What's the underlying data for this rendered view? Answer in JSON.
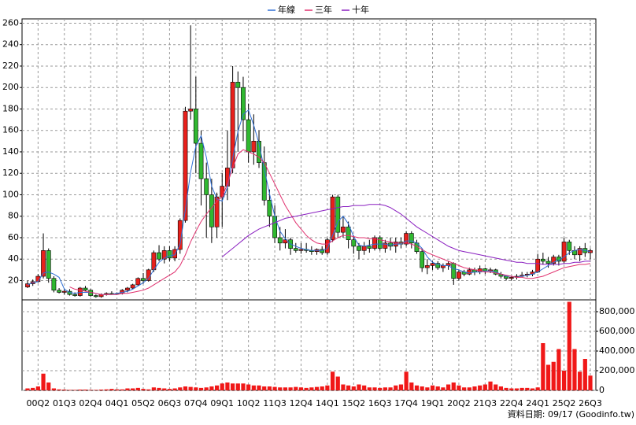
{
  "chart_data": [
    {
      "type": "candlestick",
      "legend": "top",
      "note": "資料日期: 09/17 (Goodinfo.tw)",
      "up_color": "#e8201c",
      "down_color": "#30b830",
      "categories": [
        null,
        null,
        "00Q2",
        null,
        null,
        null,
        null,
        "01Q3",
        null,
        null,
        null,
        null,
        "02Q4",
        null,
        null,
        null,
        null,
        "04Q1",
        null,
        null,
        null,
        null,
        "05Q2",
        null,
        null,
        null,
        null,
        "06Q3",
        null,
        null,
        null,
        null,
        "07Q4",
        null,
        null,
        null,
        null,
        "09Q1",
        null,
        null,
        null,
        null,
        "10Q2",
        null,
        null,
        null,
        null,
        "11Q3",
        null,
        null,
        null,
        null,
        "12Q4",
        null,
        null,
        null,
        null,
        "14Q1",
        null,
        null,
        null,
        null,
        "15Q2",
        null,
        null,
        null,
        null,
        "16Q3",
        null,
        null,
        null,
        null,
        "17Q4",
        null,
        null,
        null,
        null,
        "19Q1",
        null,
        null,
        null,
        null,
        "20Q2",
        null,
        null,
        null,
        null,
        "21Q3",
        null,
        null,
        null,
        null,
        "22Q4",
        null,
        null,
        null,
        null,
        "24Q1",
        null,
        null,
        null,
        null,
        "25Q2",
        null,
        null,
        null,
        null,
        "26Q3"
      ],
      "open": [
        14,
        17,
        19,
        24,
        48,
        22,
        11,
        9,
        10,
        7,
        6,
        13,
        11,
        6,
        5,
        7,
        8,
        8,
        8,
        11,
        13,
        16,
        22,
        20,
        30,
        46,
        40,
        48,
        41,
        49,
        76,
        178,
        180,
        148,
        115,
        100,
        70,
        98,
        108,
        125,
        205,
        200,
        170,
        140,
        150,
        130,
        95,
        80,
        60,
        55,
        58,
        50,
        48,
        49,
        48,
        47,
        49,
        46,
        58,
        98,
        65,
        70,
        58,
        52,
        48,
        52,
        50,
        60,
        50,
        55,
        52,
        56,
        54,
        64,
        55,
        47,
        32,
        34,
        36,
        32,
        34,
        36,
        22,
        28,
        26,
        30,
        28,
        31,
        29,
        30,
        26,
        24,
        22,
        23,
        24,
        25,
        26,
        28,
        40,
        38,
        36,
        42,
        38,
        56,
        48,
        44,
        50,
        46
      ],
      "high": [
        20,
        21,
        26,
        64,
        50,
        24,
        13,
        12,
        12,
        9,
        14,
        15,
        12,
        7,
        8,
        9,
        10,
        9,
        12,
        14,
        17,
        23,
        27,
        31,
        48,
        53,
        52,
        52,
        52,
        78,
        182,
        258,
        210,
        160,
        130,
        115,
        102,
        120,
        160,
        220,
        215,
        210,
        185,
        175,
        160,
        145,
        105,
        90,
        70,
        68,
        60,
        55,
        55,
        55,
        52,
        50,
        52,
        60,
        100,
        100,
        80,
        75,
        62,
        55,
        56,
        58,
        62,
        62,
        58,
        60,
        60,
        60,
        66,
        66,
        58,
        50,
        40,
        38,
        38,
        36,
        38,
        37,
        30,
        30,
        32,
        32,
        34,
        32,
        32,
        31,
        28,
        25,
        24,
        26,
        28,
        28,
        30,
        45,
        46,
        42,
        44,
        44,
        60,
        58,
        52,
        52,
        55,
        50
      ],
      "low": [
        13,
        15,
        18,
        22,
        18,
        9,
        8,
        7,
        6,
        5,
        5,
        10,
        5,
        4,
        4,
        6,
        7,
        7,
        7,
        9,
        12,
        15,
        17,
        19,
        28,
        38,
        36,
        38,
        38,
        45,
        74,
        170,
        120,
        90,
        60,
        55,
        60,
        70,
        95,
        120,
        140,
        150,
        130,
        128,
        125,
        90,
        70,
        55,
        48,
        50,
        44,
        46,
        45,
        46,
        44,
        44,
        44,
        44,
        56,
        60,
        60,
        50,
        45,
        40,
        44,
        46,
        48,
        48,
        46,
        48,
        46,
        50,
        52,
        50,
        45,
        28,
        26,
        30,
        30,
        28,
        30,
        16,
        20,
        24,
        25,
        25,
        26,
        26,
        27,
        25,
        22,
        20,
        20,
        21,
        23,
        23,
        24,
        27,
        35,
        32,
        34,
        34,
        36,
        44,
        40,
        38,
        42,
        40
      ],
      "close": [
        17,
        19,
        24,
        48,
        22,
        11,
        9,
        10,
        7,
        6,
        13,
        11,
        6,
        5,
        7,
        8,
        8,
        8,
        11,
        13,
        16,
        22,
        20,
        30,
        46,
        40,
        48,
        41,
        49,
        76,
        178,
        180,
        148,
        115,
        100,
        70,
        98,
        108,
        125,
        205,
        200,
        170,
        140,
        150,
        130,
        95,
        80,
        60,
        55,
        58,
        50,
        48,
        49,
        48,
        47,
        49,
        46,
        58,
        98,
        65,
        70,
        58,
        52,
        48,
        52,
        50,
        60,
        50,
        55,
        52,
        56,
        54,
        64,
        55,
        47,
        32,
        34,
        36,
        32,
        34,
        36,
        22,
        28,
        26,
        30,
        28,
        31,
        29,
        30,
        26,
        24,
        22,
        23,
        24,
        25,
        26,
        28,
        40,
        38,
        36,
        42,
        38,
        56,
        48,
        44,
        50,
        46,
        48
      ],
      "series": [
        {
          "name": "年線",
          "color": "#2f6fd6",
          "values": [
            16,
            18,
            19,
            27,
            28,
            26,
            23,
            12,
            9,
            8,
            9,
            9,
            9,
            8,
            7,
            7,
            7,
            8,
            9,
            10,
            12,
            15,
            18,
            22,
            30,
            37,
            41,
            43,
            44,
            54,
            86,
            121,
            145,
            155,
            135,
            108,
            96,
            94,
            107,
            134,
            159,
            175,
            179,
            165,
            148,
            124,
            101,
            80,
            66,
            59,
            54,
            52,
            50,
            49,
            48,
            48,
            48,
            50,
            62,
            75,
            80,
            73,
            61,
            53,
            52,
            53,
            54,
            54,
            54,
            53,
            54,
            54,
            57,
            57,
            55,
            50,
            42,
            37,
            35,
            34,
            34,
            31,
            30,
            28,
            27,
            28,
            28,
            29,
            29,
            28,
            26,
            24,
            24,
            23,
            24,
            25,
            26,
            28,
            31,
            34,
            37,
            39,
            42,
            46,
            48,
            49,
            48,
            47
          ]
        },
        {
          "name": "三年",
          "color": "#e0306e",
          "values": [
            null,
            null,
            null,
            null,
            null,
            null,
            null,
            null,
            14,
            12,
            11,
            10,
            9,
            8,
            7,
            7,
            7,
            7,
            8,
            8,
            9,
            10,
            11,
            13,
            16,
            19,
            22,
            25,
            28,
            34,
            44,
            56,
            66,
            75,
            82,
            88,
            94,
            98,
            110,
            125,
            138,
            142,
            140,
            138,
            135,
            130,
            120,
            110,
            100,
            90,
            82,
            74,
            68,
            62,
            58,
            55,
            54,
            54,
            57,
            60,
            62,
            62,
            61,
            60,
            60,
            59,
            59,
            58,
            57,
            56,
            55,
            55,
            55,
            54,
            52,
            49,
            46,
            44,
            42,
            40,
            38,
            36,
            34,
            32,
            31,
            30,
            29,
            28,
            28,
            27,
            26,
            25,
            24,
            23,
            23,
            22,
            22,
            23,
            24,
            26,
            28,
            30,
            32,
            33,
            34,
            35,
            35,
            36
          ]
        },
        {
          "name": "十年",
          "color": "#8a1fc0",
          "values": [
            null,
            null,
            null,
            null,
            null,
            null,
            null,
            null,
            null,
            null,
            null,
            null,
            null,
            null,
            null,
            null,
            null,
            null,
            null,
            null,
            null,
            null,
            null,
            null,
            null,
            null,
            null,
            null,
            null,
            null,
            null,
            null,
            null,
            null,
            null,
            null,
            null,
            42,
            46,
            50,
            54,
            58,
            62,
            65,
            68,
            70,
            72,
            74,
            76,
            78,
            79,
            80,
            81,
            82,
            83,
            84,
            85,
            86,
            87,
            88,
            89,
            89,
            90,
            90,
            90,
            91,
            91,
            91,
            90,
            88,
            85,
            82,
            78,
            74,
            70,
            67,
            64,
            61,
            58,
            55,
            52,
            50,
            48,
            47,
            46,
            45,
            44,
            43,
            42,
            41,
            40,
            39,
            38,
            37,
            37,
            36,
            36,
            36,
            35,
            35,
            35,
            35,
            36,
            36,
            37,
            37,
            38,
            38
          ]
        }
      ],
      "ylim": [
        2,
        264
      ],
      "yticks": [
        20,
        40,
        60,
        80,
        100,
        120,
        140,
        160,
        180,
        200,
        220,
        240,
        260
      ],
      "grid": true
    },
    {
      "type": "bar",
      "color": "#f01818",
      "values": [
        20000,
        25000,
        40000,
        170000,
        80000,
        20000,
        10000,
        8000,
        5000,
        5000,
        8000,
        8000,
        5000,
        5000,
        8000,
        10000,
        15000,
        10000,
        10000,
        20000,
        20000,
        25000,
        15000,
        10000,
        30000,
        25000,
        20000,
        15000,
        20000,
        30000,
        40000,
        35000,
        30000,
        25000,
        30000,
        40000,
        50000,
        70000,
        80000,
        70000,
        70000,
        70000,
        60000,
        50000,
        50000,
        40000,
        40000,
        35000,
        30000,
        30000,
        30000,
        35000,
        30000,
        25000,
        30000,
        35000,
        40000,
        50000,
        190000,
        140000,
        60000,
        50000,
        40000,
        60000,
        50000,
        30000,
        30000,
        25000,
        30000,
        30000,
        50000,
        60000,
        190000,
        80000,
        50000,
        40000,
        30000,
        50000,
        40000,
        30000,
        60000,
        80000,
        50000,
        30000,
        30000,
        40000,
        50000,
        60000,
        90000,
        60000,
        40000,
        25000,
        20000,
        20000,
        25000,
        25000,
        20000,
        30000,
        480000,
        260000,
        290000,
        420000,
        200000,
        900000,
        420000,
        190000,
        320000,
        150000
      ],
      "ylim": [
        0,
        920000
      ],
      "yticks": [
        0,
        {
          "value": 200000,
          "label": "200,000"
        },
        {
          "value": 400000,
          "label": "400,000"
        },
        {
          "value": 600000,
          "label": "600,000"
        },
        {
          "value": 800000,
          "label": "800,000"
        }
      ],
      "grid": true
    }
  ]
}
